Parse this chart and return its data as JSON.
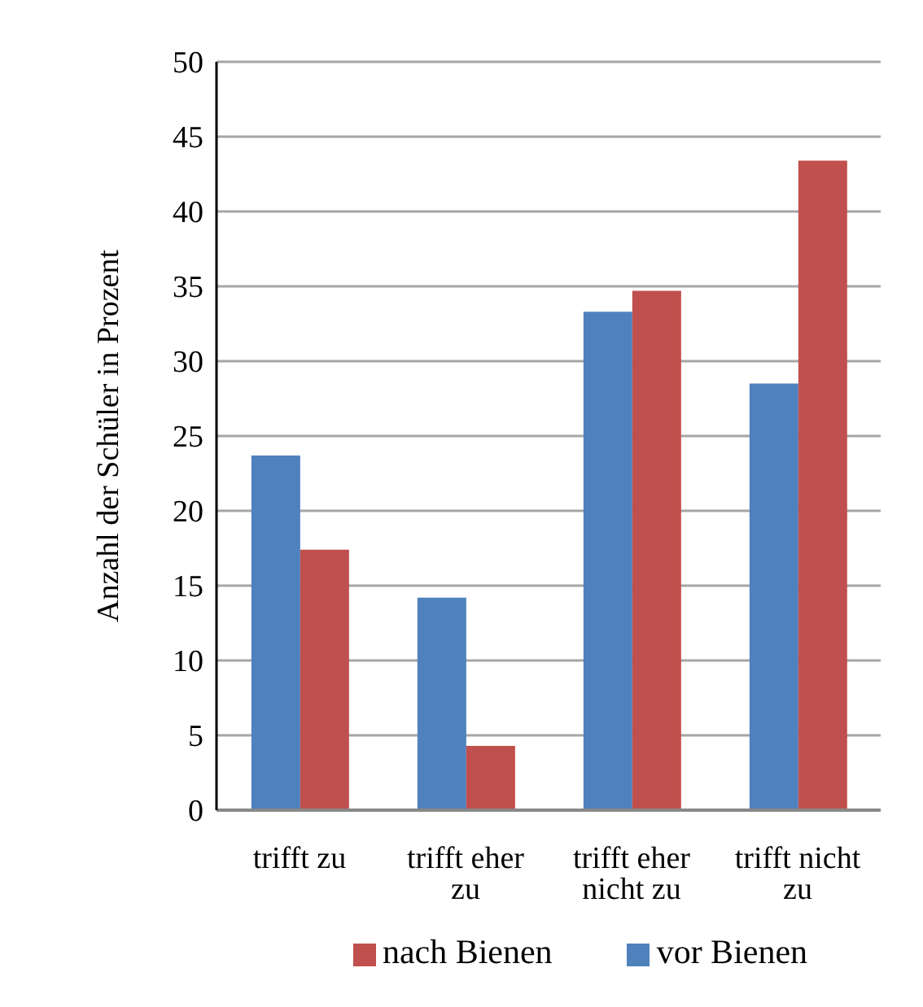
{
  "chart_data": {
    "type": "bar",
    "categories": [
      "trifft zu",
      "trifft eher zu",
      "trifft eher nicht zu",
      "trifft nicht zu"
    ],
    "series": [
      {
        "name": "vor Bienen",
        "color": "#4f81bd",
        "values": [
          23.7,
          14.2,
          33.3,
          28.5
        ]
      },
      {
        "name": "nach Bienen",
        "color": "#c0504d",
        "values": [
          17.4,
          4.3,
          34.7,
          43.4
        ]
      }
    ],
    "ylabel": "Anzahl der Schüler in Prozent",
    "ylim": [
      0,
      50
    ],
    "yticks": [
      0,
      5,
      10,
      15,
      20,
      25,
      30,
      35,
      40,
      45,
      50
    ],
    "grid": "y",
    "legend": "bottom"
  }
}
